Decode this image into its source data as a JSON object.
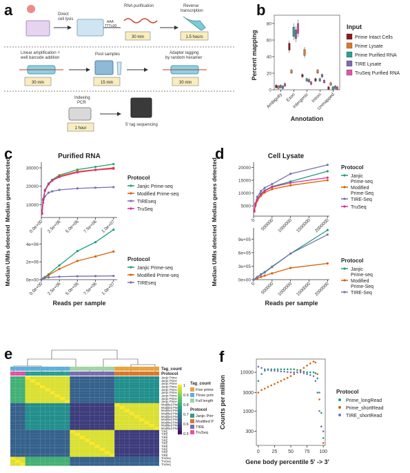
{
  "panels": {
    "a": {
      "letter": "a",
      "row1": {
        "step1": "Direct\ncell lysis",
        "step2": "RNA purification",
        "seq": "AAA\nTTTx30",
        "step3": "Reverse\ntranscription",
        "time1": "30 min",
        "time2": "1.5 hours"
      },
      "row2": {
        "step1": "Linear amplification +\nwell barcode addition",
        "step2": "Pool samples",
        "step3": "Adapter tagging\nby random hexamer",
        "time1": "30 min",
        "time2": "15 min",
        "time3": "30 min"
      },
      "row3": {
        "step1": "Indexing\nPCR",
        "step2": "5' tag sequencing",
        "time1": "1 hour"
      }
    },
    "b": {
      "letter": "b",
      "ylabel": "Percent mapping",
      "xlabel": "Annotation",
      "legend_title": "Input",
      "legend": [
        "Prime Intact Cells",
        "Prime Lysate",
        "Prime Purified RNA",
        "TIRE Lysate",
        "TruSeq Purified RNA"
      ],
      "categories": [
        "Ambiguity",
        "Exon",
        "Intergenic",
        "Intron",
        "Unmapped"
      ],
      "yticks": [
        "0",
        "20",
        "40",
        "60",
        "80"
      ]
    },
    "c": {
      "letter": "c",
      "title": "Purified RNA",
      "ylabel_top": "Median genes detected",
      "ylabel_bottom": "Median UMIs detected",
      "xlabel": "Reads per sample",
      "legend_title": "Protocol",
      "legend_top": [
        "Janjic Prime-seq",
        "Modified Prime-seq",
        "TIREseq",
        "TruSeq"
      ],
      "legend_bottom": [
        "Janjic Prime-seq",
        "Modified Prime-seq",
        "TIREseq"
      ],
      "yticks_top": [
        "10000",
        "20000",
        "30000"
      ],
      "yticks_bottom": [
        "0e+00",
        "2e+06",
        "4e+06"
      ],
      "xticks": [
        "0.0e+00",
        "2.5e+06",
        "5.0e+06",
        "7.5e+06",
        "1.0e+07"
      ]
    },
    "d": {
      "letter": "d",
      "title": "Cell Lysate",
      "ylabel_top": "Median genes detected",
      "ylabel_bottom": "Median UMIs detected",
      "xlabel": "Reads per sample",
      "legend_title": "Protocol",
      "legend": [
        "Janjic\nPrime-seq",
        "Modified\nPrime-Seq",
        "TIRE-Seq",
        "TruSeq"
      ],
      "legend_bottom": [
        "Janjic\nPrime-seq",
        "Modified\nPrime-Seq",
        "TIRE-Seq"
      ],
      "yticks_top": [
        "5000",
        "10000",
        "15000",
        "20000"
      ],
      "yticks_bottom": [
        "0e+00",
        "3e+05",
        "6e+05",
        "9e+05"
      ],
      "xticks": [
        "0",
        "500000",
        "1000000",
        "1500000",
        "2000000"
      ]
    },
    "e": {
      "letter": "e",
      "track1": "Tag_count",
      "track2": "Protocol",
      "tag_title": "Tag_count",
      "tag_legend": [
        "Five prime",
        "Three prime",
        "Full length"
      ],
      "protocol_title": "Protocol",
      "protocol_legend": [
        "Janjic Prime",
        "Modified Prime",
        "TIRE",
        "TruSeq"
      ],
      "scale": [
        "1",
        "0.9",
        "0.8",
        "0.7",
        "0.6",
        "0.5"
      ],
      "rows": [
        "Janjic Prime",
        "Janjic Prime",
        "Janjic Prime",
        "Janjic Prime",
        "Janjic Prime",
        "Janjic Prime",
        "Janjic Prime",
        "Janjic Prime",
        "Janjic Prime",
        "Modified Prime",
        "Modified Prime",
        "Modified Prime",
        "Modified Prime",
        "Modified Prime",
        "Modified Prime",
        "Modified Prime",
        "Modified Prime",
        "Modified Prime",
        "TIRE",
        "TIRE",
        "TIRE",
        "TIRE",
        "TIRE",
        "TIRE",
        "TIRE",
        "TIRE",
        "TIRE",
        "TruSeq",
        "TruSeq",
        "TruSeq"
      ]
    },
    "f": {
      "letter": "f",
      "ylabel": "Counts per million",
      "xlabel": "Gene body percentile 5' -> 3'",
      "legend_title": "Protocol",
      "legend": [
        "Prime_longRead",
        "Prime_shortRead",
        "TIRE_shortRead"
      ],
      "yticks": [
        "300",
        "1000",
        "3000",
        "10000"
      ],
      "xticks": [
        "0",
        "25",
        "50",
        "75",
        "100"
      ]
    }
  },
  "chart_data": [
    {
      "type": "line",
      "panel": "c-top",
      "x": [
        100000,
        250000,
        500000,
        1000000,
        1500000,
        2500000,
        5000000,
        7500000,
        10000000
      ],
      "series": [
        {
          "name": "Janjic Prime-seq",
          "color": "#1b9e77",
          "values": [
            5500,
            13000,
            18000,
            21500,
            23500,
            26000,
            29000,
            30500,
            32000
          ]
        },
        {
          "name": "Modified Prime-seq",
          "color": "#d95f02",
          "values": [
            5000,
            12500,
            17500,
            21000,
            23000,
            25500,
            28000,
            29000,
            30000
          ]
        },
        {
          "name": "TIREseq",
          "color": "#7570b3",
          "values": [
            5000,
            11000,
            14500,
            16500,
            17200,
            18000,
            18800,
            19200,
            19500
          ]
        },
        {
          "name": "TruSeq",
          "color": "#e7298a",
          "values": [
            5200,
            12500,
            17500,
            21000,
            23000,
            25000,
            27500,
            28800,
            29500
          ]
        }
      ]
    },
    {
      "type": "line",
      "panel": "c-bottom",
      "x": [
        0,
        250000,
        500000,
        1000000,
        2500000,
        5000000,
        7500000,
        10000000
      ],
      "series": [
        {
          "name": "Janjic Prime-seq",
          "color": "#1b9e77",
          "values": [
            0,
            150000,
            300000,
            600000,
            1600000,
            3200000,
            4200000,
            5600000
          ]
        },
        {
          "name": "Modified Prime-seq",
          "color": "#d95f02",
          "values": [
            0,
            120000,
            250000,
            500000,
            1200000,
            2100000,
            2600000,
            3150000
          ]
        },
        {
          "name": "TIREseq",
          "color": "#7570b3",
          "values": [
            0,
            100000,
            200000,
            250000,
            330000,
            380000,
            400000,
            420000
          ]
        }
      ]
    },
    {
      "type": "line",
      "panel": "d-top",
      "x": [
        20000,
        50000,
        100000,
        200000,
        300000,
        500000,
        1000000,
        2000000
      ],
      "series": [
        {
          "name": "Janjic Prime-seq",
          "color": "#1b9e77",
          "values": [
            3000,
            5500,
            7500,
            9800,
            11000,
            12500,
            14500,
            18500
          ]
        },
        {
          "name": "Modified Prime-Seq",
          "color": "#d95f02",
          "values": [
            2800,
            5000,
            7000,
            9000,
            10200,
            11500,
            13000,
            15000
          ]
        },
        {
          "name": "TIRE-Seq",
          "color": "#7570b3",
          "values": [
            3200,
            6000,
            8500,
            10800,
            12000,
            13500,
            17500,
            21000
          ]
        },
        {
          "name": "TruSeq",
          "color": "#e7298a",
          "values": [
            3000,
            5500,
            7500,
            9500,
            10800,
            12300,
            14000,
            16000
          ]
        }
      ]
    },
    {
      "type": "line",
      "panel": "d-bottom",
      "x": [
        0,
        100000,
        200000,
        300000,
        500000,
        1000000,
        2000000
      ],
      "series": [
        {
          "name": "Janjic Prime-seq",
          "color": "#1b9e77",
          "values": [
            0,
            60000,
            120000,
            170000,
            290000,
            580000,
            1100000
          ]
        },
        {
          "name": "Modified Prime-Seq",
          "color": "#d95f02",
          "values": [
            0,
            30000,
            60000,
            90000,
            140000,
            260000,
            360000
          ]
        },
        {
          "name": "TIRE-Seq",
          "color": "#7570b3",
          "values": [
            0,
            55000,
            110000,
            160000,
            280000,
            580000,
            1000000
          ]
        }
      ]
    },
    {
      "type": "line",
      "panel": "f",
      "x": [
        0,
        5,
        10,
        15,
        20,
        25,
        30,
        35,
        40,
        45,
        50,
        55,
        60,
        65,
        70,
        75,
        80,
        85,
        88,
        91,
        94,
        97,
        100
      ],
      "series": [
        {
          "name": "Prime_longRead",
          "color": "#1b9e77",
          "values": [
            6000,
            9000,
            11000,
            12000,
            12000,
            12000,
            12000,
            12000,
            12000,
            12000,
            12000,
            12000,
            11500,
            11000,
            10500,
            10000,
            10000,
            10000,
            9500,
            7000,
            3000,
            900,
            200
          ]
        },
        {
          "name": "Prime_shortRead",
          "color": "#d95f02",
          "values": [
            3000,
            3500,
            3800,
            4200,
            4600,
            5000,
            5500,
            6000,
            6600,
            7200,
            8000,
            9000,
            10000,
            11500,
            13000,
            15000,
            17000,
            19000,
            18000,
            9000,
            2000,
            400,
            150
          ]
        },
        {
          "name": "TIRE_shortRead",
          "color": "#7570b3",
          "values": [
            14000,
            13000,
            12000,
            11500,
            11000,
            11000,
            10800,
            10500,
            10500,
            10200,
            10000,
            10000,
            10000,
            10000,
            9500,
            9000,
            8500,
            8000,
            6000,
            3000,
            1000,
            400,
            300
          ]
        }
      ]
    },
    {
      "type": "box",
      "panel": "b",
      "categories": [
        "Ambiguity",
        "Exon",
        "Intergenic",
        "Intron",
        "Unmapped"
      ],
      "series": [
        {
          "name": "Prime Intact Cells",
          "color": "#8b1a1a",
          "values": [
            4,
            52,
            17,
            12,
            2
          ]
        },
        {
          "name": "Prime Lysate",
          "color": "#d9782d",
          "values": [
            3,
            22,
            45,
            22,
            7
          ]
        },
        {
          "name": "Prime Purified RNA",
          "color": "#2e9e8f",
          "values": [
            4,
            70,
            12,
            12,
            2
          ]
        },
        {
          "name": "TIRE Lysate",
          "color": "#7b6bb0",
          "values": [
            3,
            67,
            11,
            17,
            3
          ]
        },
        {
          "name": "TruSeq Purified RNA",
          "color": "#e054a6",
          "values": [
            6,
            74,
            8,
            10,
            2
          ]
        }
      ],
      "ylim": [
        0,
        80
      ]
    }
  ]
}
